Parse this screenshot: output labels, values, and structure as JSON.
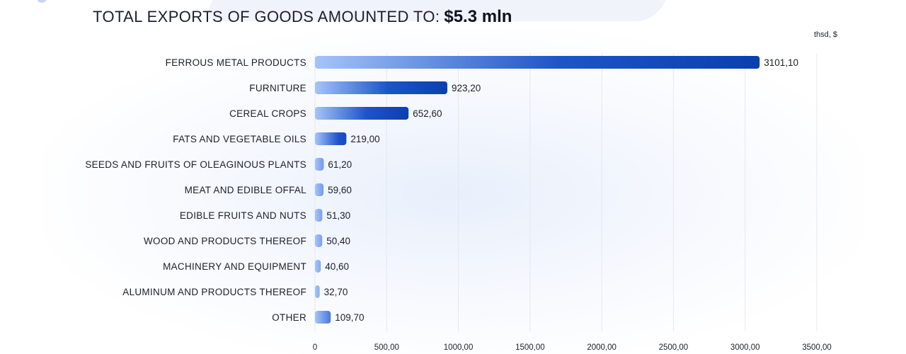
{
  "header": {
    "title_prefix": "TOTAL EXPORTS OF GOODS AMOUNTED TO:",
    "title_amount": "$5.3 mln",
    "unit": "thsd, $"
  },
  "chart_data": {
    "type": "bar",
    "orientation": "horizontal",
    "title": "TOTAL EXPORTS OF GOODS AMOUNTED TO: $5.3 mln",
    "xlabel": "",
    "ylabel": "",
    "unit": "thsd, $",
    "categories": [
      "FERROUS METAL PRODUCTS",
      "FURNITURE",
      "CEREAL CROPS",
      "FATS AND VEGETABLE OILS",
      "SEEDS AND FRUITS OF OLEAGINOUS PLANTS",
      "MEAT AND EDIBLE OFFAL",
      "EDIBLE FRUITS AND NUTS",
      "WOOD AND PRODUCTS THEREOF",
      "MACHINERY AND EQUIPMENT",
      "ALUMINUM AND PRODUCTS THEREOF",
      "OTHER"
    ],
    "values": [
      3101.1,
      923.2,
      652.6,
      219.0,
      61.2,
      59.6,
      51.3,
      50.4,
      40.6,
      32.7,
      109.7
    ],
    "value_labels": [
      "3101,10",
      "923,20",
      "652,60",
      "219,00",
      "61,20",
      "59,60",
      "51,30",
      "50,40",
      "40,60",
      "32,70",
      "109,70"
    ],
    "xlim": [
      0,
      3500
    ],
    "ticks": [
      0,
      500,
      1000,
      1500,
      2000,
      2500,
      3000,
      3500
    ],
    "tick_labels": [
      "0",
      "500,00",
      "1000,00",
      "1500,00",
      "2000,00",
      "2500,00",
      "3000,00",
      "3500,00"
    ],
    "grid": true,
    "legend": "none",
    "colors": {
      "bar_start": "#a5c4f8",
      "bar_end": "#0a3fb0",
      "grid": "#e4e8f1",
      "text": "#1c1f2a"
    }
  }
}
